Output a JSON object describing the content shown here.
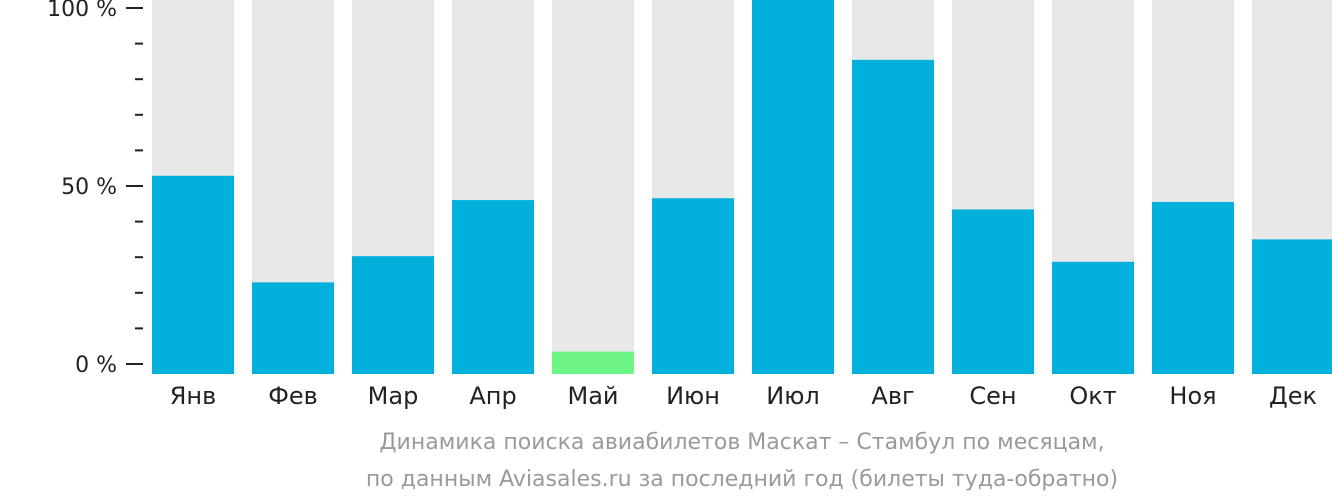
{
  "chart_data": {
    "type": "bar",
    "categories": [
      "Янв",
      "Фев",
      "Мар",
      "Апр",
      "Май",
      "Июн",
      "Июл",
      "Авг",
      "Сен",
      "Окт",
      "Ноя",
      "Дек"
    ],
    "values": [
      53,
      24.5,
      31.5,
      46.5,
      6,
      47,
      100,
      84,
      44,
      30,
      46,
      36
    ],
    "highlight_index": 4,
    "ylim": [
      0,
      100
    ],
    "y_ticks": [
      {
        "value": 100,
        "label": "100 %"
      },
      {
        "value": 50,
        "label": "50 %"
      },
      {
        "value": 0,
        "label": "0 %"
      }
    ],
    "minor_tick_step": 10,
    "colors": {
      "bar": "#02b0dc",
      "bar_highlight": "#6cf584",
      "background_bar": "#e8e8e8",
      "axis": "#222222",
      "label": "#222222"
    },
    "caption": [
      "Динамика поиска авиабилетов Маскат – Стамбул по месяцам,",
      "по данным Aviasales.ru за последний год (билеты туда-обратно)"
    ]
  }
}
